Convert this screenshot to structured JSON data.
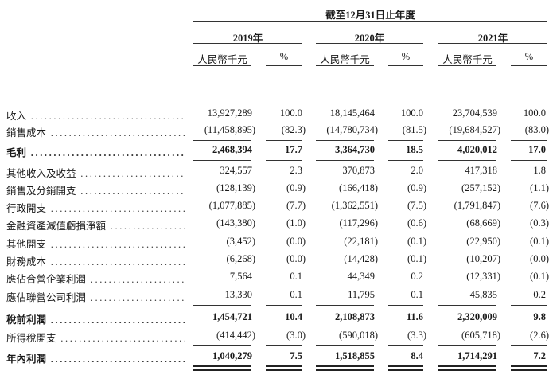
{
  "header": {
    "period": "截至12月31日止年度",
    "years": [
      "2019年",
      "2020年",
      "2021年"
    ],
    "amount_unit": "人民幣千元",
    "percent_unit": "%"
  },
  "rows": [
    {
      "label": "收入",
      "bold": false,
      "values": [
        "13,927,289",
        "100.0",
        "18,145,464",
        "100.0",
        "23,704,539",
        "100.0"
      ]
    },
    {
      "label": "銷售成本",
      "bold": false,
      "values": [
        "(11,458,895)",
        "(82.3)",
        "(14,780,734)",
        "(81.5)",
        "(19,684,527)",
        "(83.0)"
      ]
    },
    {
      "label": "毛利",
      "bold": true,
      "values": [
        "2,468,394",
        "17.7",
        "3,364,730",
        "18.5",
        "4,020,012",
        "17.0"
      ]
    },
    {
      "label": "其他收入及收益",
      "bold": false,
      "values": [
        "324,557",
        "2.3",
        "370,873",
        "2.0",
        "417,318",
        "1.8"
      ]
    },
    {
      "label": "銷售及分銷開支",
      "bold": false,
      "values": [
        "(128,139)",
        "(0.9)",
        "(166,418)",
        "(0.9)",
        "(257,152)",
        "(1.1)"
      ]
    },
    {
      "label": "行政開支",
      "bold": false,
      "values": [
        "(1,077,885)",
        "(7.7)",
        "(1,362,551)",
        "(7.5)",
        "(1,791,847)",
        "(7.6)"
      ]
    },
    {
      "label": "金融資產減值虧損淨額",
      "bold": false,
      "values": [
        "(143,380)",
        "(1.0)",
        "(117,296)",
        "(0.6)",
        "(68,669)",
        "(0.3)"
      ]
    },
    {
      "label": "其他開支",
      "bold": false,
      "values": [
        "(3,452)",
        "(0.0)",
        "(22,181)",
        "(0.1)",
        "(22,950)",
        "(0.1)"
      ]
    },
    {
      "label": "財務成本",
      "bold": false,
      "values": [
        "(6,268)",
        "(0.0)",
        "(14,428)",
        "(0.1)",
        "(10,207)",
        "(0.0)"
      ]
    },
    {
      "label": "應佔合營企業利潤",
      "bold": false,
      "values": [
        "7,564",
        "0.1",
        "44,349",
        "0.2",
        "(12,331)",
        "(0.1)"
      ]
    },
    {
      "label": "應佔聯營公司利潤",
      "bold": false,
      "values": [
        "13,330",
        "0.1",
        "11,795",
        "0.1",
        "45,835",
        "0.2"
      ]
    },
    {
      "label": "稅前利潤",
      "bold": true,
      "values": [
        "1,454,721",
        "10.4",
        "2,108,873",
        "11.6",
        "2,320,009",
        "9.8"
      ]
    },
    {
      "label": "所得稅開支",
      "bold": false,
      "values": [
        "(414,442)",
        "(3.0)",
        "(590,018)",
        "(3.3)",
        "(605,718)",
        "(2.6)"
      ]
    },
    {
      "label": "年內利潤",
      "bold": true,
      "values": [
        "1,040,279",
        "7.5",
        "1,518,855",
        "8.4",
        "1,714,291",
        "7.2"
      ]
    }
  ]
}
